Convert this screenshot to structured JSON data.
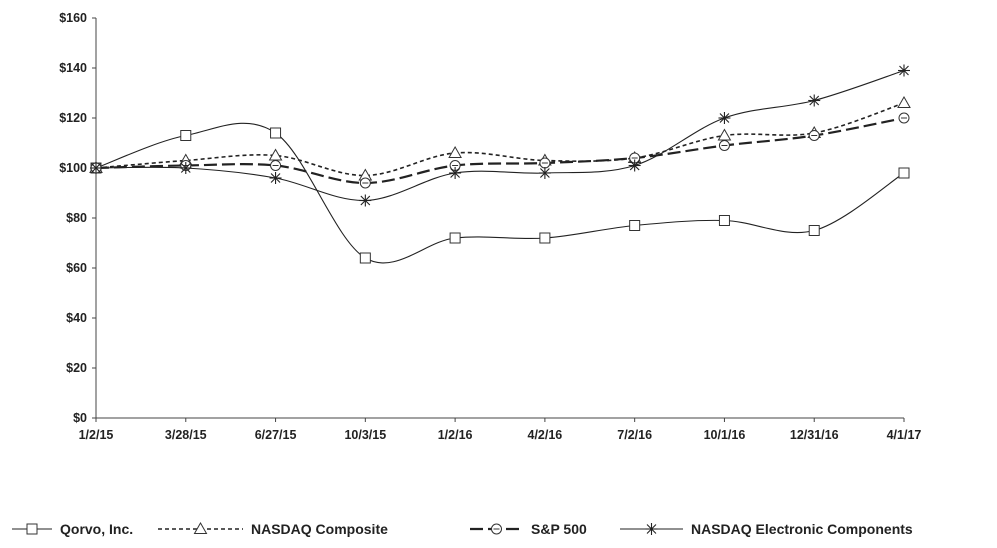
{
  "chart_data": {
    "type": "line",
    "x": [
      "1/2/15",
      "3/28/15",
      "6/27/15",
      "10/3/15",
      "1/2/16",
      "4/2/16",
      "7/2/16",
      "10/1/16",
      "12/31/16",
      "4/1/17"
    ],
    "ylim": [
      0,
      160
    ],
    "yticks": [
      "$0",
      "$20",
      "$40",
      "$60",
      "$80",
      "$100",
      "$120",
      "$140",
      "$160"
    ],
    "grid": false,
    "legend_position": "bottom",
    "series": [
      {
        "name": "Qorvo, Inc.",
        "marker": "square",
        "dash": "solid",
        "values": [
          100,
          113,
          114,
          64,
          72,
          72,
          77,
          79,
          75,
          98
        ]
      },
      {
        "name": "NASDAQ Composite",
        "marker": "triangle",
        "dash": "dotted",
        "values": [
          100,
          103,
          105,
          97,
          106,
          103,
          104,
          113,
          114,
          126
        ]
      },
      {
        "name": "S&P 500",
        "marker": "circle",
        "dash": "dashed",
        "values": [
          100,
          101,
          101,
          94,
          101,
          102,
          104,
          109,
          113,
          120
        ]
      },
      {
        "name": "NASDAQ Electronic Components",
        "marker": "star",
        "dash": "solid",
        "values": [
          100,
          100,
          96,
          87,
          98,
          98,
          101,
          120,
          127,
          139
        ]
      }
    ]
  }
}
